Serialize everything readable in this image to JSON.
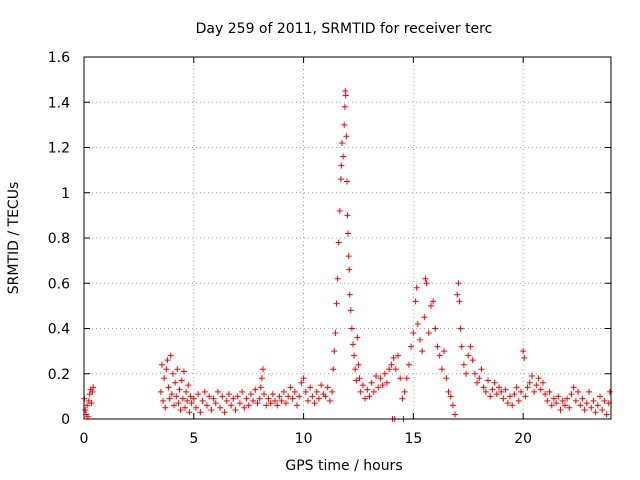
{
  "chart_data": {
    "type": "scatter",
    "title": "Day 259 of 2011, SRMTID for receiver terc",
    "xlabel": "GPS time / hours",
    "ylabel": "SRMTID / TECUs",
    "xlim": [
      0,
      24
    ],
    "ylim": [
      0,
      1.6
    ],
    "xticks": [
      0,
      5,
      10,
      15,
      20
    ],
    "xtick_labels": [
      "0",
      "5",
      "10",
      "15",
      "20"
    ],
    "yticks": [
      0,
      0.2,
      0.4,
      0.6,
      0.8,
      1.0,
      1.2,
      1.4,
      1.6
    ],
    "ytick_labels": [
      "0",
      "0.2",
      "0.4",
      "0.6",
      "0.8",
      "1",
      "1.2",
      "1.4",
      "1.6"
    ],
    "grid": true,
    "marker": "+",
    "color": "#ff0000",
    "series": [
      {
        "name": "SRMTID",
        "points": [
          [
            0.02,
            0.09
          ],
          [
            0.06,
            0.04
          ],
          [
            0.1,
            0.02
          ],
          [
            0.14,
            0.06
          ],
          [
            0.18,
            0.01
          ],
          [
            0.22,
            0.08
          ],
          [
            0.26,
            0.11
          ],
          [
            0.3,
            0.13
          ],
          [
            0.34,
            0.07
          ],
          [
            0.38,
            0.12
          ],
          [
            0.42,
            0.14
          ],
          [
            3.5,
            0.12
          ],
          [
            3.55,
            0.24
          ],
          [
            3.6,
            0.08
          ],
          [
            3.65,
            0.18
          ],
          [
            3.7,
            0.05
          ],
          [
            3.75,
            0.22
          ],
          [
            3.8,
            0.26
          ],
          [
            3.85,
            0.14
          ],
          [
            3.9,
            0.09
          ],
          [
            3.95,
            0.28
          ],
          [
            4.0,
            0.11
          ],
          [
            4.05,
            0.2
          ],
          [
            4.1,
            0.06
          ],
          [
            4.15,
            0.16
          ],
          [
            4.2,
            0.1
          ],
          [
            4.25,
            0.22
          ],
          [
            4.3,
            0.07
          ],
          [
            4.35,
            0.13
          ],
          [
            4.4,
            0.04
          ],
          [
            4.45,
            0.17
          ],
          [
            4.5,
            0.09
          ],
          [
            4.55,
            0.21
          ],
          [
            4.6,
            0.05
          ],
          [
            4.65,
            0.12
          ],
          [
            4.7,
            0.08
          ],
          [
            4.75,
            0.15
          ],
          [
            4.8,
            0.03
          ],
          [
            4.85,
            0.1
          ],
          [
            4.9,
            0.07
          ],
          [
            5.0,
            0.09
          ],
          [
            5.1,
            0.05
          ],
          [
            5.2,
            0.11
          ],
          [
            5.3,
            0.03
          ],
          [
            5.4,
            0.08
          ],
          [
            5.5,
            0.12
          ],
          [
            5.6,
            0.06
          ],
          [
            5.7,
            0.1
          ],
          [
            5.8,
            0.04
          ],
          [
            5.9,
            0.09
          ],
          [
            6.0,
            0.07
          ],
          [
            6.1,
            0.12
          ],
          [
            6.2,
            0.05
          ],
          [
            6.3,
            0.1
          ],
          [
            6.4,
            0.03
          ],
          [
            6.5,
            0.08
          ],
          [
            6.6,
            0.11
          ],
          [
            6.7,
            0.06
          ],
          [
            6.8,
            0.09
          ],
          [
            6.9,
            0.04
          ],
          [
            7.0,
            0.1
          ],
          [
            7.1,
            0.07
          ],
          [
            7.2,
            0.12
          ],
          [
            7.3,
            0.05
          ],
          [
            7.4,
            0.09
          ],
          [
            7.5,
            0.06
          ],
          [
            7.6,
            0.11
          ],
          [
            7.7,
            0.08
          ],
          [
            7.8,
            0.13
          ],
          [
            7.9,
            0.07
          ],
          [
            8.0,
            0.09
          ],
          [
            8.05,
            0.14
          ],
          [
            8.1,
            0.18
          ],
          [
            8.15,
            0.22
          ],
          [
            8.2,
            0.11
          ],
          [
            8.3,
            0.06
          ],
          [
            8.4,
            0.09
          ],
          [
            8.5,
            0.07
          ],
          [
            8.6,
            0.11
          ],
          [
            8.7,
            0.08
          ],
          [
            8.8,
            0.06
          ],
          [
            8.9,
            0.1
          ],
          [
            9.0,
            0.08
          ],
          [
            9.1,
            0.12
          ],
          [
            9.2,
            0.07
          ],
          [
            9.3,
            0.1
          ],
          [
            9.4,
            0.14
          ],
          [
            9.5,
            0.09
          ],
          [
            9.6,
            0.12
          ],
          [
            9.7,
            0.06
          ],
          [
            9.8,
            0.1
          ],
          [
            9.9,
            0.16
          ],
          [
            10.0,
            0.18
          ],
          [
            10.1,
            0.12
          ],
          [
            10.2,
            0.08
          ],
          [
            10.3,
            0.14
          ],
          [
            10.4,
            0.1
          ],
          [
            10.5,
            0.07
          ],
          [
            10.6,
            0.12
          ],
          [
            10.7,
            0.09
          ],
          [
            10.8,
            0.15
          ],
          [
            10.9,
            0.11
          ],
          [
            11.0,
            0.1
          ],
          [
            11.1,
            0.14
          ],
          [
            11.2,
            0.08
          ],
          [
            11.3,
            0.12
          ],
          [
            11.35,
            0.22
          ],
          [
            11.4,
            0.3
          ],
          [
            11.45,
            0.38
          ],
          [
            11.5,
            0.51
          ],
          [
            11.55,
            0.62
          ],
          [
            11.6,
            0.78
          ],
          [
            11.65,
            0.92
          ],
          [
            11.7,
            1.06
          ],
          [
            11.72,
            1.12
          ],
          [
            11.75,
            1.22
          ],
          [
            11.8,
            1.16
          ],
          [
            11.85,
            1.3
          ],
          [
            11.88,
            1.38
          ],
          [
            11.9,
            1.45
          ],
          [
            11.92,
            1.43
          ],
          [
            11.95,
            1.25
          ],
          [
            11.98,
            1.05
          ],
          [
            12.0,
            0.9
          ],
          [
            12.02,
            0.82
          ],
          [
            12.05,
            0.72
          ],
          [
            12.08,
            0.66
          ],
          [
            12.1,
            0.55
          ],
          [
            12.15,
            0.48
          ],
          [
            12.2,
            0.4
          ],
          [
            12.25,
            0.33
          ],
          [
            12.3,
            0.28
          ],
          [
            12.35,
            0.22
          ],
          [
            12.4,
            0.17
          ],
          [
            12.45,
            0.36
          ],
          [
            12.5,
            0.24
          ],
          [
            12.55,
            0.18
          ],
          [
            12.6,
            0.12
          ],
          [
            12.7,
            0.15
          ],
          [
            12.8,
            0.09
          ],
          [
            12.9,
            0.13
          ],
          [
            13.0,
            0.1
          ],
          [
            13.1,
            0.16
          ],
          [
            13.2,
            0.12
          ],
          [
            13.3,
            0.19
          ],
          [
            13.4,
            0.14
          ],
          [
            13.5,
            0.18
          ],
          [
            13.6,
            0.15
          ],
          [
            13.7,
            0.2
          ],
          [
            13.8,
            0.16
          ],
          [
            13.9,
            0.22
          ],
          [
            14.0,
            0.24
          ],
          [
            14.05,
            0.0
          ],
          [
            14.1,
            0.27
          ],
          [
            14.15,
            0.0
          ],
          [
            14.2,
            0.22
          ],
          [
            14.3,
            0.28
          ],
          [
            14.4,
            0.18
          ],
          [
            14.5,
            0.09
          ],
          [
            14.55,
            0.0
          ],
          [
            14.6,
            0.12
          ],
          [
            14.7,
            0.18
          ],
          [
            14.8,
            0.24
          ],
          [
            14.9,
            0.32
          ],
          [
            15.0,
            0.38
          ],
          [
            15.1,
            0.52
          ],
          [
            15.15,
            0.58
          ],
          [
            15.2,
            0.42
          ],
          [
            15.3,
            0.35
          ],
          [
            15.4,
            0.3
          ],
          [
            15.5,
            0.45
          ],
          [
            15.55,
            0.62
          ],
          [
            15.6,
            0.6
          ],
          [
            15.7,
            0.38
          ],
          [
            15.8,
            0.5
          ],
          [
            15.9,
            0.52
          ],
          [
            16.0,
            0.4
          ],
          [
            16.1,
            0.32
          ],
          [
            16.2,
            0.28
          ],
          [
            16.3,
            0.22
          ],
          [
            16.4,
            0.3
          ],
          [
            16.5,
            0.18
          ],
          [
            16.6,
            0.12
          ],
          [
            16.7,
            0.1
          ],
          [
            16.8,
            0.06
          ],
          [
            16.9,
            0.02
          ],
          [
            17.0,
            0.55
          ],
          [
            17.05,
            0.6
          ],
          [
            17.1,
            0.52
          ],
          [
            17.15,
            0.4
          ],
          [
            17.2,
            0.32
          ],
          [
            17.3,
            0.24
          ],
          [
            17.4,
            0.2
          ],
          [
            17.5,
            0.28
          ],
          [
            17.6,
            0.32
          ],
          [
            17.7,
            0.26
          ],
          [
            17.8,
            0.2
          ],
          [
            17.9,
            0.16
          ],
          [
            18.0,
            0.18
          ],
          [
            18.1,
            0.22
          ],
          [
            18.2,
            0.14
          ],
          [
            18.3,
            0.12
          ],
          [
            18.4,
            0.17
          ],
          [
            18.5,
            0.1
          ],
          [
            18.6,
            0.13
          ],
          [
            18.7,
            0.16
          ],
          [
            18.8,
            0.11
          ],
          [
            18.9,
            0.14
          ],
          [
            19.0,
            0.12
          ],
          [
            19.1,
            0.09
          ],
          [
            19.2,
            0.13
          ],
          [
            19.3,
            0.07
          ],
          [
            19.4,
            0.1
          ],
          [
            19.5,
            0.06
          ],
          [
            19.6,
            0.11
          ],
          [
            19.7,
            0.14
          ],
          [
            19.8,
            0.08
          ],
          [
            19.9,
            0.12
          ],
          [
            20.0,
            0.3
          ],
          [
            20.05,
            0.27
          ],
          [
            20.1,
            0.1
          ],
          [
            20.2,
            0.14
          ],
          [
            20.3,
            0.16
          ],
          [
            20.4,
            0.19
          ],
          [
            20.5,
            0.12
          ],
          [
            20.6,
            0.15
          ],
          [
            20.7,
            0.18
          ],
          [
            20.8,
            0.13
          ],
          [
            20.9,
            0.16
          ],
          [
            21.0,
            0.11
          ],
          [
            21.1,
            0.08
          ],
          [
            21.2,
            0.12
          ],
          [
            21.3,
            0.06
          ],
          [
            21.4,
            0.09
          ],
          [
            21.5,
            0.07
          ],
          [
            21.6,
            0.1
          ],
          [
            21.7,
            0.04
          ],
          [
            21.8,
            0.08
          ],
          [
            21.9,
            0.06
          ],
          [
            22.0,
            0.09
          ],
          [
            22.1,
            0.05
          ],
          [
            22.2,
            0.11
          ],
          [
            22.3,
            0.14
          ],
          [
            22.4,
            0.08
          ],
          [
            22.5,
            0.12
          ],
          [
            22.6,
            0.06
          ],
          [
            22.7,
            0.09
          ],
          [
            22.8,
            0.04
          ],
          [
            22.9,
            0.07
          ],
          [
            23.0,
            0.12
          ],
          [
            23.1,
            0.05
          ],
          [
            23.2,
            0.08
          ],
          [
            23.3,
            0.03
          ],
          [
            23.4,
            0.06
          ],
          [
            23.5,
            0.1
          ],
          [
            23.6,
            0.04
          ],
          [
            23.7,
            0.08
          ],
          [
            23.8,
            0.02
          ],
          [
            23.9,
            0.07
          ],
          [
            23.95,
            0.12
          ]
        ]
      }
    ]
  }
}
